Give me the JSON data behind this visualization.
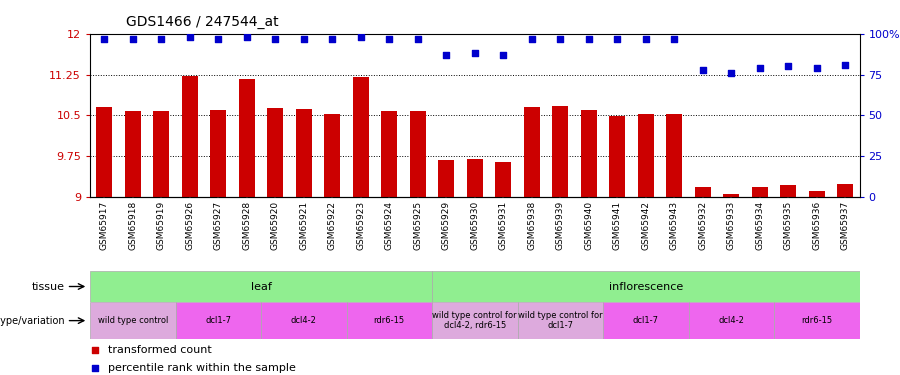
{
  "title": "GDS1466 / 247544_at",
  "samples": [
    "GSM65917",
    "GSM65918",
    "GSM65919",
    "GSM65926",
    "GSM65927",
    "GSM65928",
    "GSM65920",
    "GSM65921",
    "GSM65922",
    "GSM65923",
    "GSM65924",
    "GSM65925",
    "GSM65929",
    "GSM65930",
    "GSM65931",
    "GSM65938",
    "GSM65939",
    "GSM65940",
    "GSM65941",
    "GSM65942",
    "GSM65943",
    "GSM65932",
    "GSM65933",
    "GSM65934",
    "GSM65935",
    "GSM65936",
    "GSM65937"
  ],
  "bar_values": [
    10.65,
    10.58,
    10.58,
    11.22,
    10.6,
    11.17,
    10.63,
    10.62,
    10.53,
    11.2,
    10.58,
    10.58,
    9.67,
    9.7,
    9.65,
    10.65,
    10.68,
    10.6,
    10.48,
    10.53,
    10.52,
    9.18,
    9.05,
    9.18,
    9.22,
    9.1,
    9.23
  ],
  "percentile_values": [
    97,
    97,
    97,
    98,
    97,
    98,
    97,
    97,
    97,
    98,
    97,
    97,
    87,
    88,
    87,
    97,
    97,
    97,
    97,
    97,
    97,
    78,
    76,
    79,
    80,
    79,
    81
  ],
  "ylim_left": [
    9.0,
    12.0
  ],
  "ylim_right": [
    0,
    100
  ],
  "yticks_left": [
    9.0,
    9.75,
    10.5,
    11.25,
    12.0
  ],
  "ytick_labels_left": [
    "9",
    "9.75",
    "10.5",
    "11.25",
    "12"
  ],
  "yticks_right": [
    0,
    25,
    50,
    75,
    100
  ],
  "ytick_labels_right": [
    "0",
    "25",
    "50",
    "75",
    "100%"
  ],
  "hlines": [
    9.75,
    10.5,
    11.25
  ],
  "bar_color": "#cc0000",
  "dot_color": "#0000cc",
  "background_color": "#ffffff",
  "plot_bg_color": "#ffffff",
  "xlabels_bg_color": "#d3d3d3",
  "tissue_groups": [
    {
      "label": "leaf",
      "start": 0,
      "end": 11,
      "color": "#90ee90"
    },
    {
      "label": "inflorescence",
      "start": 12,
      "end": 26,
      "color": "#90ee90"
    }
  ],
  "genotype_groups": [
    {
      "label": "wild type control",
      "start": 0,
      "end": 2,
      "color": "#ddaadd"
    },
    {
      "label": "dcl1-7",
      "start": 3,
      "end": 5,
      "color": "#ee66ee"
    },
    {
      "label": "dcl4-2",
      "start": 6,
      "end": 8,
      "color": "#ee66ee"
    },
    {
      "label": "rdr6-15",
      "start": 9,
      "end": 11,
      "color": "#ee66ee"
    },
    {
      "label": "wild type control for\ndcl4-2, rdr6-15",
      "start": 12,
      "end": 14,
      "color": "#ddaadd"
    },
    {
      "label": "wild type control for\ndcl1-7",
      "start": 15,
      "end": 17,
      "color": "#ddaadd"
    },
    {
      "label": "dcl1-7",
      "start": 18,
      "end": 20,
      "color": "#ee66ee"
    },
    {
      "label": "dcl4-2",
      "start": 21,
      "end": 23,
      "color": "#ee66ee"
    },
    {
      "label": "rdr6-15",
      "start": 24,
      "end": 26,
      "color": "#ee66ee"
    }
  ]
}
